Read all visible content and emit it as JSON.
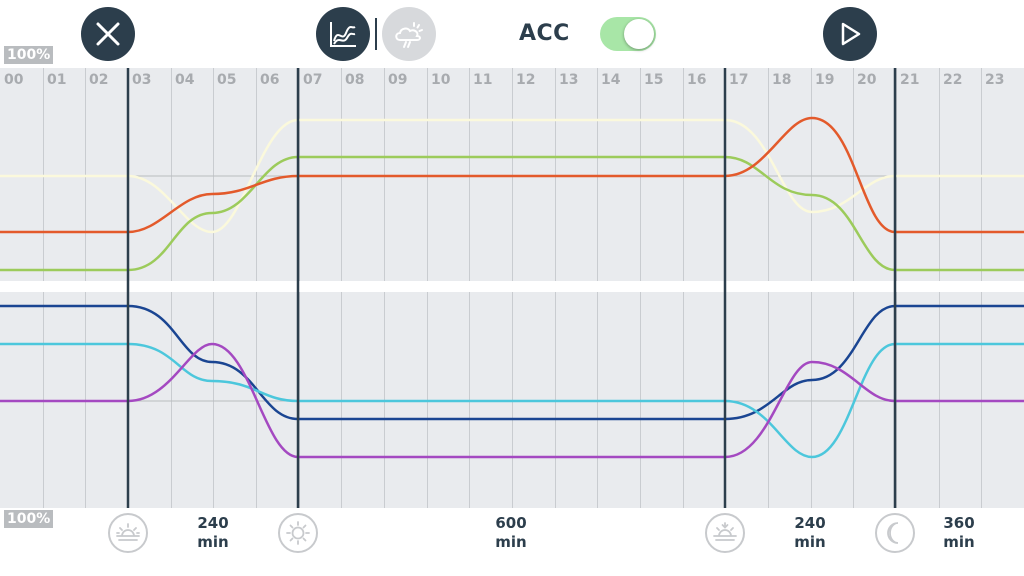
{
  "toolbar": {
    "close_icon": "close-icon",
    "chart_icon": "chart-icon",
    "weather_icon": "cloud-sun-icon",
    "acc_label": "ACC",
    "acc_enabled": true,
    "play_icon": "play-icon"
  },
  "scale": {
    "top_label": "100%",
    "bottom_label": "100%"
  },
  "hours": [
    "00",
    "01",
    "02",
    "03",
    "04",
    "05",
    "06",
    "07",
    "08",
    "09",
    "10",
    "11",
    "12",
    "13",
    "14",
    "15",
    "16",
    "17",
    "18",
    "19",
    "20",
    "21",
    "22",
    "23"
  ],
  "phases": [
    {
      "icon": "sunrise-icon",
      "duration_value": "240",
      "duration_unit": "min"
    },
    {
      "icon": "sun-icon",
      "duration_value": "600",
      "duration_unit": "min"
    },
    {
      "icon": "sunset-icon",
      "duration_value": "240",
      "duration_unit": "min"
    },
    {
      "icon": "moon-icon",
      "duration_value": "360",
      "duration_unit": "min"
    }
  ],
  "colors": {
    "panel_bg": "#e9ebee",
    "dark": "#2c3e4c",
    "orange": "#e35a2b",
    "light_green": "#9ccb5b",
    "cream": "#fbf9dc",
    "dark_blue": "#1a4592",
    "cyan": "#4cc7dc",
    "purple": "#a449c1"
  }
}
